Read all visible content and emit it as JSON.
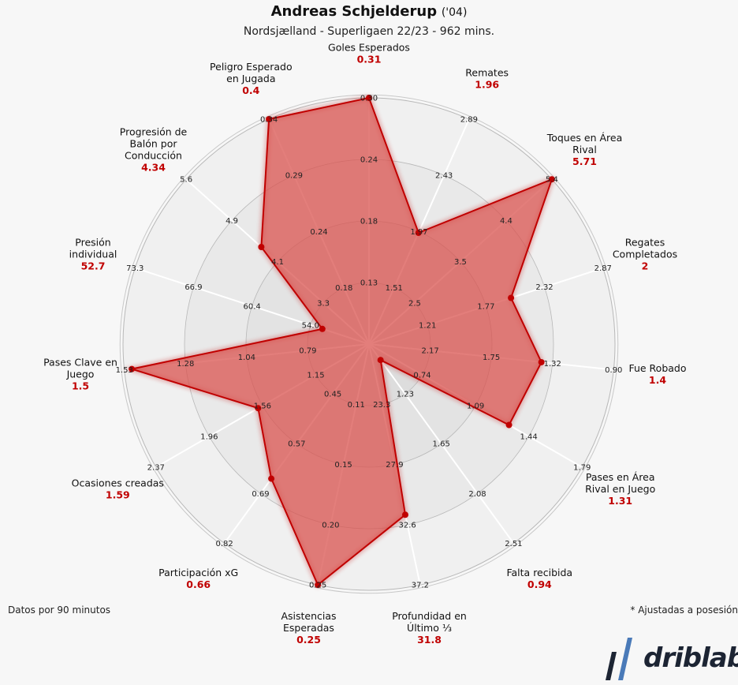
{
  "header": {
    "player_name": "Andreas Schjelderup",
    "birth_year": "('04)",
    "subtitle": "Nordsjælland - Superligaen 22/23 - 962 mins."
  },
  "footer": {
    "per90_note": "Datos por 90 minutos",
    "possession_note": "* Ajustadas a posesión",
    "brand": "driblab"
  },
  "colors": {
    "fill": "#d9534f",
    "stroke": "#c00000",
    "value_text": "#c00000",
    "ring_light": "#f0f0f0",
    "ring_dark": "#e6e6e6"
  },
  "chart_data": {
    "type": "radar",
    "title": "Andreas Schjelderup ('04)",
    "subtitle": "Nordsjælland - Superligaen 22/23 - 962 mins.",
    "axes": [
      {
        "label": "Goles Esperados",
        "value": 0.31,
        "value_text": "0.31",
        "ticks": [
          "0.13",
          "0.18",
          "0.24",
          "0.30"
        ],
        "clip": true
      },
      {
        "label": "Remates",
        "value": 1.96,
        "value_text": "1.96",
        "ticks": [
          "1.51",
          "1.97",
          "2.43",
          "2.89"
        ],
        "clip": false
      },
      {
        "label": "Toques en Área Rival",
        "value": 5.71,
        "value_text": "5.71",
        "ticks": [
          "2.5",
          "3.5",
          "4.4",
          "5.4"
        ],
        "clip": true
      },
      {
        "label": "Regates Completados",
        "value": 2,
        "value_text": "2",
        "ticks": [
          "1.21",
          "1.77",
          "2.32",
          "2.87"
        ],
        "clip": false
      },
      {
        "label": "Fue Robado",
        "value": 1.4,
        "value_text": "1.4",
        "ticks": [
          "2.17",
          "1.75",
          "1.32",
          "0.90"
        ],
        "clip": false
      },
      {
        "label": "Pases en Área Rival en Juego",
        "value": 1.31,
        "value_text": "1.31",
        "ticks": [
          "0.74",
          "1.09",
          "1.44",
          "1.79"
        ],
        "clip": false
      },
      {
        "label": "Falta recibida",
        "value": 0.94,
        "value_text": "0.94",
        "ticks": [
          "1.23",
          "1.65",
          "2.08",
          "2.51"
        ],
        "clip": false
      },
      {
        "label": "Profundidad en Último ⅓",
        "value": 31.8,
        "value_text": "31.8",
        "ticks": [
          "23.3",
          "27.9",
          "32.6",
          "37.2"
        ],
        "clip": false
      },
      {
        "label": "Asistencias Esperadas",
        "value": 0.25,
        "value_text": "0.25",
        "ticks": [
          "0.11",
          "0.15",
          "0.20",
          "0.25"
        ],
        "clip": false
      },
      {
        "label": "Participación xG",
        "value": 0.66,
        "value_text": "0.66",
        "ticks": [
          "0.45",
          "0.57",
          "0.69",
          "0.82"
        ],
        "clip": false
      },
      {
        "label": "Ocasiones creadas",
        "value": 1.59,
        "value_text": "1.59",
        "ticks": [
          "1.15",
          "1.56",
          "1.96",
          "2.37"
        ],
        "clip": false
      },
      {
        "label": "Pases Clave en Juego",
        "value": 1.5,
        "value_text": "1.5",
        "ticks": [
          "0.79",
          "1.04",
          "1.28",
          "1.53"
        ],
        "clip": false
      },
      {
        "label": "Presión individual",
        "value": 52.7,
        "value_text": "52.7",
        "ticks": [
          "54.0",
          "60.4",
          "66.9",
          "73.3"
        ],
        "clip": false
      },
      {
        "label": "Progresión de Balón por Conducción",
        "value": 4.34,
        "value_text": "4.34",
        "ticks": [
          "3.3",
          "4.1",
          "4.9",
          "5.6"
        ],
        "clip": false
      },
      {
        "label": "Peligro Esperado en Jugada",
        "value": 0.4,
        "value_text": "0.4",
        "ticks": [
          "0.18",
          "0.24",
          "0.29",
          "0.34"
        ],
        "clip": true
      }
    ]
  }
}
